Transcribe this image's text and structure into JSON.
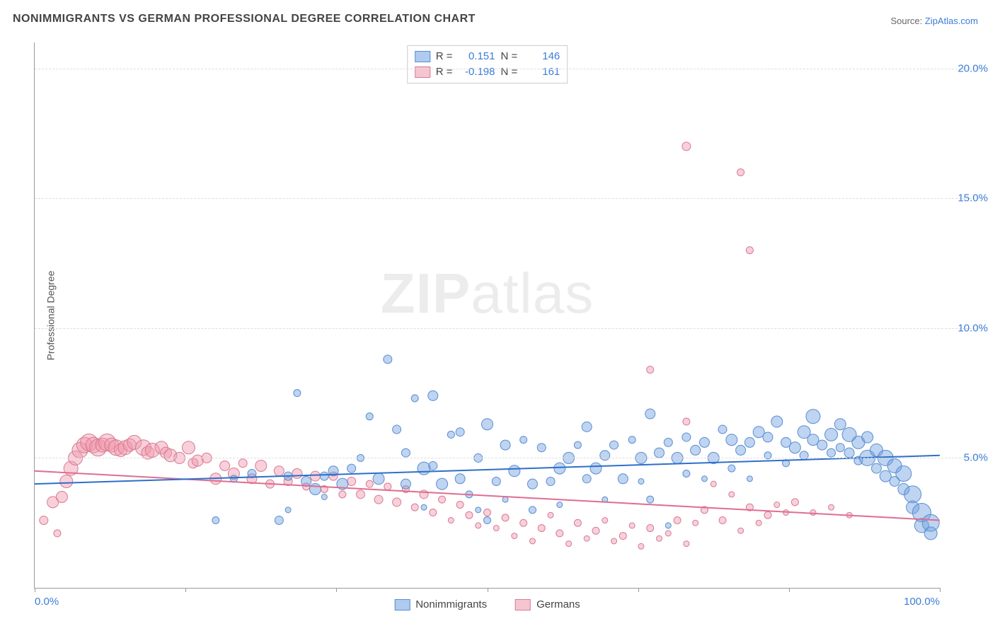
{
  "title": "NONIMMIGRANTS VS GERMAN PROFESSIONAL DEGREE CORRELATION CHART",
  "source_prefix": "Source: ",
  "source_name": "ZipAtlas.com",
  "ylabel": "Professional Degree",
  "watermark_zip": "ZIP",
  "watermark_atlas": "atlas",
  "chart": {
    "type": "scatter",
    "xlim": [
      0,
      100
    ],
    "ylim": [
      0,
      21
    ],
    "y_ticks": [
      5,
      10,
      15,
      20
    ],
    "y_tick_labels": [
      "5.0%",
      "10.0%",
      "15.0%",
      "20.0%"
    ],
    "x_ticks": [
      0,
      16.67,
      33.33,
      50,
      66.67,
      83.33,
      100
    ],
    "x_tick_labels_left": "0.0%",
    "x_tick_labels_right": "100.0%",
    "background_color": "#ffffff",
    "grid_color": "#dddddd",
    "axis_color": "#999999",
    "tick_label_color": "#3b7dd8",
    "series": {
      "blue": {
        "label": "Nonimmigrants",
        "fill": "rgba(110,160,225,0.45)",
        "stroke": "#5a8dd0",
        "trend_color": "#2e6fc9",
        "trend": {
          "y_at_x0": 4.0,
          "y_at_x100": 5.1
        },
        "r_label": "R =",
        "r_value": "0.151",
        "n_label": "N =",
        "n_value": "146"
      },
      "pink": {
        "label": "Germans",
        "fill": "rgba(240,150,170,0.45)",
        "stroke": "#d87a94",
        "trend_color": "#e06d90",
        "trend": {
          "y_at_x0": 4.5,
          "y_at_x100": 2.6
        },
        "r_label": "R =",
        "r_value": "-0.198",
        "n_label": "N =",
        "n_value": "161"
      }
    },
    "marker_r_min": 4,
    "marker_r_max": 13,
    "blue_points": [
      [
        20,
        2.6,
        5
      ],
      [
        22,
        4.2,
        5
      ],
      [
        24,
        4.4,
        6
      ],
      [
        27,
        2.6,
        6
      ],
      [
        28,
        4.3,
        6
      ],
      [
        28,
        3.0,
        4
      ],
      [
        29,
        7.5,
        5
      ],
      [
        30,
        4.1,
        7
      ],
      [
        31,
        3.8,
        8
      ],
      [
        32,
        4.3,
        6
      ],
      [
        32,
        3.5,
        4
      ],
      [
        33,
        4.5,
        7
      ],
      [
        34,
        4.0,
        8
      ],
      [
        35,
        4.6,
        6
      ],
      [
        36,
        5.0,
        5
      ],
      [
        37,
        6.6,
        5
      ],
      [
        38,
        4.2,
        8
      ],
      [
        39,
        8.8,
        6
      ],
      [
        40,
        6.1,
        6
      ],
      [
        41,
        4.0,
        7
      ],
      [
        41,
        5.2,
        6
      ],
      [
        42,
        7.3,
        5
      ],
      [
        43,
        4.6,
        9
      ],
      [
        43,
        3.1,
        4
      ],
      [
        44,
        4.7,
        6
      ],
      [
        44,
        7.4,
        7
      ],
      [
        45,
        4.0,
        8
      ],
      [
        46,
        5.9,
        5
      ],
      [
        47,
        4.2,
        7
      ],
      [
        47,
        6.0,
        6
      ],
      [
        48,
        3.6,
        5
      ],
      [
        49,
        5.0,
        6
      ],
      [
        49,
        3.0,
        4
      ],
      [
        50,
        6.3,
        8
      ],
      [
        50,
        2.6,
        5
      ],
      [
        51,
        4.1,
        6
      ],
      [
        52,
        5.5,
        7
      ],
      [
        52,
        3.4,
        4
      ],
      [
        53,
        4.5,
        8
      ],
      [
        54,
        5.7,
        5
      ],
      [
        55,
        4.0,
        7
      ],
      [
        55,
        3.0,
        5
      ],
      [
        56,
        5.4,
        6
      ],
      [
        57,
        4.1,
        6
      ],
      [
        58,
        4.6,
        8
      ],
      [
        58,
        3.2,
        4
      ],
      [
        59,
        5.0,
        8
      ],
      [
        60,
        5.5,
        5
      ],
      [
        61,
        4.2,
        6
      ],
      [
        61,
        6.2,
        7
      ],
      [
        62,
        4.6,
        8
      ],
      [
        63,
        5.1,
        7
      ],
      [
        63,
        3.4,
        4
      ],
      [
        64,
        5.5,
        6
      ],
      [
        65,
        4.2,
        7
      ],
      [
        66,
        5.7,
        5
      ],
      [
        67,
        5.0,
        8
      ],
      [
        67,
        4.1,
        4
      ],
      [
        68,
        3.4,
        5
      ],
      [
        68,
        6.7,
        7
      ],
      [
        69,
        5.2,
        7
      ],
      [
        70,
        5.6,
        6
      ],
      [
        70,
        2.4,
        4
      ],
      [
        71,
        5.0,
        8
      ],
      [
        72,
        5.8,
        6
      ],
      [
        72,
        4.4,
        5
      ],
      [
        73,
        5.3,
        7
      ],
      [
        74,
        5.6,
        7
      ],
      [
        74,
        4.2,
        4
      ],
      [
        75,
        5.0,
        8
      ],
      [
        76,
        6.1,
        6
      ],
      [
        77,
        5.7,
        8
      ],
      [
        77,
        4.6,
        5
      ],
      [
        78,
        5.3,
        7
      ],
      [
        79,
        5.6,
        7
      ],
      [
        79,
        4.2,
        4
      ],
      [
        80,
        6.0,
        8
      ],
      [
        81,
        5.8,
        7
      ],
      [
        81,
        5.1,
        5
      ],
      [
        82,
        6.4,
        8
      ],
      [
        83,
        5.6,
        7
      ],
      [
        83,
        4.8,
        5
      ],
      [
        84,
        5.4,
        8
      ],
      [
        85,
        6.0,
        9
      ],
      [
        85,
        5.1,
        6
      ],
      [
        86,
        5.7,
        8
      ],
      [
        86,
        6.6,
        10
      ],
      [
        87,
        5.5,
        7
      ],
      [
        88,
        5.9,
        9
      ],
      [
        88,
        5.2,
        6
      ],
      [
        89,
        6.3,
        8
      ],
      [
        89,
        5.4,
        6
      ],
      [
        90,
        5.9,
        10
      ],
      [
        90,
        5.2,
        7
      ],
      [
        91,
        5.6,
        9
      ],
      [
        91,
        4.9,
        6
      ],
      [
        92,
        5.0,
        11
      ],
      [
        92,
        5.8,
        8
      ],
      [
        93,
        5.3,
        9
      ],
      [
        93,
        4.6,
        7
      ],
      [
        94,
        5.0,
        11
      ],
      [
        94,
        4.3,
        8
      ],
      [
        95,
        4.7,
        10
      ],
      [
        95,
        4.1,
        7
      ],
      [
        96,
        4.4,
        11
      ],
      [
        96,
        3.8,
        8
      ],
      [
        97,
        3.6,
        12
      ],
      [
        97,
        3.1,
        9
      ],
      [
        98,
        2.9,
        13
      ],
      [
        98,
        2.4,
        10
      ],
      [
        99,
        2.5,
        12
      ],
      [
        99,
        2.1,
        9
      ]
    ],
    "pink_points": [
      [
        1,
        2.6,
        6
      ],
      [
        2,
        3.3,
        8
      ],
      [
        2.5,
        2.1,
        5
      ],
      [
        3,
        3.5,
        8
      ],
      [
        3.5,
        4.1,
        9
      ],
      [
        4,
        4.6,
        10
      ],
      [
        4.5,
        5.0,
        10
      ],
      [
        5,
        5.3,
        11
      ],
      [
        5.5,
        5.5,
        11
      ],
      [
        6,
        5.6,
        12
      ],
      [
        6.5,
        5.5,
        11
      ],
      [
        7,
        5.4,
        12
      ],
      [
        7.5,
        5.5,
        10
      ],
      [
        8,
        5.6,
        12
      ],
      [
        8.5,
        5.5,
        10
      ],
      [
        9,
        5.4,
        11
      ],
      [
        9.5,
        5.3,
        9
      ],
      [
        10,
        5.4,
        10
      ],
      [
        10.5,
        5.5,
        9
      ],
      [
        11,
        5.6,
        10
      ],
      [
        12,
        5.4,
        11
      ],
      [
        12.5,
        5.2,
        9
      ],
      [
        13,
        5.3,
        10
      ],
      [
        14,
        5.4,
        9
      ],
      [
        14.5,
        5.2,
        8
      ],
      [
        15,
        5.1,
        9
      ],
      [
        16,
        5.0,
        8
      ],
      [
        17,
        5.4,
        9
      ],
      [
        17.5,
        4.8,
        7
      ],
      [
        18,
        4.9,
        8
      ],
      [
        19,
        5.0,
        7
      ],
      [
        20,
        4.2,
        8
      ],
      [
        21,
        4.7,
        7
      ],
      [
        22,
        4.4,
        8
      ],
      [
        23,
        4.8,
        6
      ],
      [
        24,
        4.2,
        7
      ],
      [
        25,
        4.7,
        8
      ],
      [
        26,
        4.0,
        6
      ],
      [
        27,
        4.5,
        7
      ],
      [
        28,
        4.1,
        6
      ],
      [
        29,
        4.4,
        7
      ],
      [
        30,
        3.9,
        5
      ],
      [
        31,
        4.3,
        7
      ],
      [
        32,
        3.8,
        5
      ],
      [
        33,
        4.3,
        6
      ],
      [
        34,
        3.6,
        5
      ],
      [
        35,
        4.1,
        6
      ],
      [
        36,
        3.6,
        6
      ],
      [
        37,
        4.0,
        5
      ],
      [
        38,
        3.4,
        6
      ],
      [
        39,
        3.9,
        5
      ],
      [
        40,
        3.3,
        6
      ],
      [
        41,
        3.8,
        5
      ],
      [
        42,
        3.1,
        5
      ],
      [
        43,
        3.6,
        6
      ],
      [
        44,
        2.9,
        5
      ],
      [
        45,
        3.4,
        5
      ],
      [
        46,
        2.6,
        4
      ],
      [
        47,
        3.2,
        5
      ],
      [
        48,
        2.8,
        5
      ],
      [
        49,
        2.4,
        4
      ],
      [
        50,
        2.9,
        5
      ],
      [
        51,
        2.3,
        4
      ],
      [
        52,
        2.7,
        5
      ],
      [
        53,
        2.0,
        4
      ],
      [
        54,
        2.5,
        5
      ],
      [
        55,
        1.8,
        4
      ],
      [
        56,
        2.3,
        5
      ],
      [
        57,
        2.8,
        4
      ],
      [
        58,
        2.1,
        5
      ],
      [
        59,
        1.7,
        4
      ],
      [
        60,
        2.5,
        5
      ],
      [
        61,
        1.9,
        4
      ],
      [
        62,
        2.2,
        5
      ],
      [
        63,
        2.6,
        4
      ],
      [
        64,
        1.8,
        4
      ],
      [
        65,
        2.0,
        5
      ],
      [
        66,
        2.4,
        4
      ],
      [
        67,
        1.6,
        4
      ],
      [
        68,
        2.3,
        5
      ],
      [
        69,
        1.9,
        4
      ],
      [
        70,
        2.1,
        4
      ],
      [
        71,
        2.6,
        5
      ],
      [
        72,
        1.7,
        4
      ],
      [
        73,
        2.5,
        4
      ],
      [
        74,
        3.0,
        5
      ],
      [
        75,
        4.0,
        4
      ],
      [
        76,
        2.6,
        5
      ],
      [
        77,
        3.6,
        4
      ],
      [
        78,
        2.2,
        4
      ],
      [
        79,
        3.1,
        5
      ],
      [
        80,
        2.5,
        4
      ],
      [
        81,
        2.8,
        5
      ],
      [
        82,
        3.2,
        4
      ],
      [
        83,
        2.9,
        4
      ],
      [
        84,
        3.3,
        5
      ],
      [
        72,
        17.0,
        6
      ],
      [
        78,
        16.0,
        5
      ],
      [
        79,
        13.0,
        5
      ],
      [
        68,
        8.4,
        5
      ],
      [
        72,
        6.4,
        5
      ],
      [
        86,
        2.9,
        4
      ],
      [
        88,
        3.1,
        4
      ],
      [
        90,
        2.8,
        4
      ]
    ]
  }
}
